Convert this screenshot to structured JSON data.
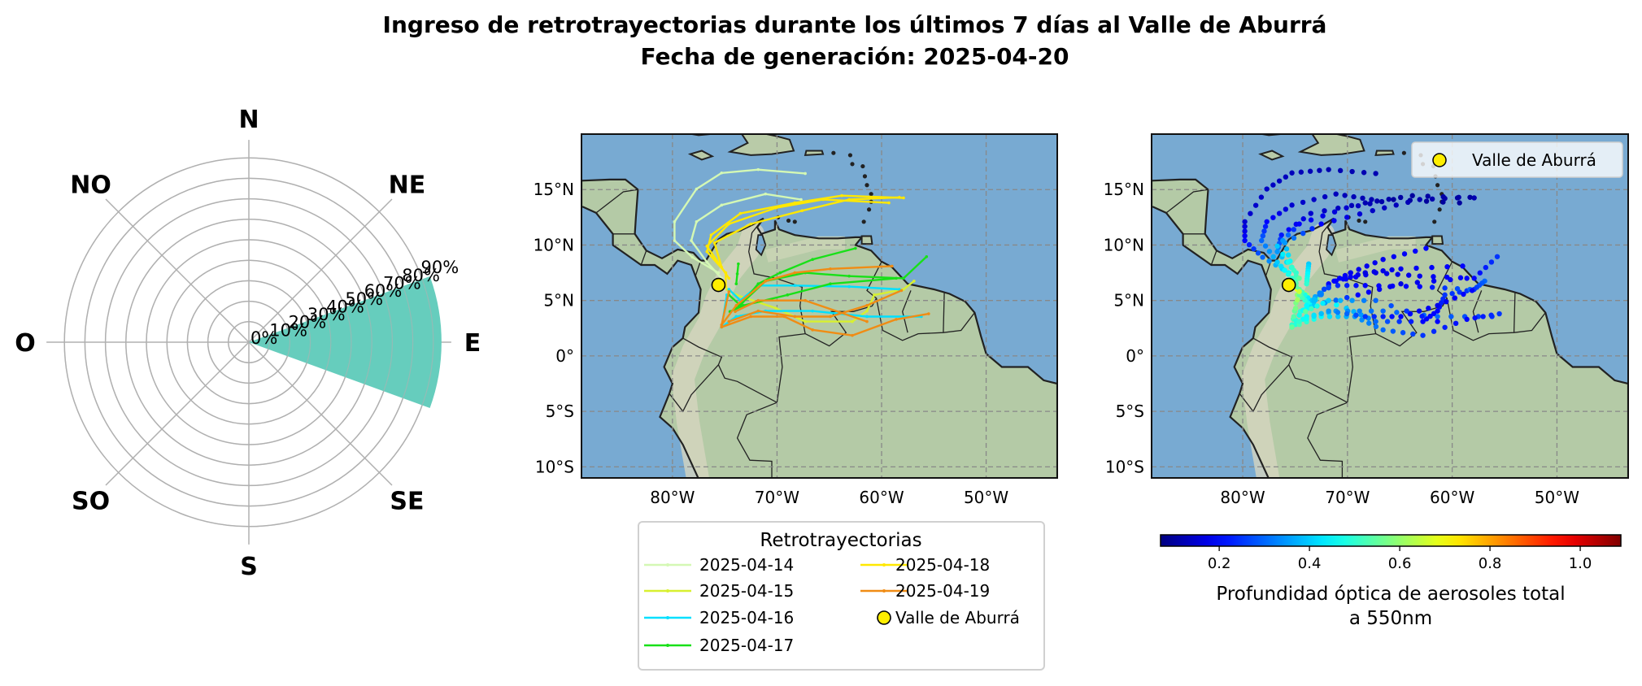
{
  "title": {
    "line1": "Ingreso de retrotrayectorias durante los últimos 7 días al Valle de Aburrá",
    "line2": "Fecha de generación: 2025-04-20"
  },
  "chart_data": [
    {
      "type": "polar-bar",
      "directions": [
        "N",
        "NE",
        "E",
        "SE",
        "S",
        "SO",
        "O",
        "NO"
      ],
      "values": [
        0,
        0,
        94,
        0,
        0,
        0,
        0,
        0
      ],
      "bar_color": "#66cdbd",
      "radial_ticks": [
        "0%",
        "10%",
        "20%",
        "30%",
        "40%",
        "50%",
        "60%",
        "70%",
        "80%",
        "90%"
      ],
      "radial_tick_values": [
        0,
        10,
        20,
        30,
        40,
        50,
        60,
        70,
        80,
        90
      ],
      "rlim": [
        0,
        94
      ],
      "grid": true
    },
    {
      "type": "line",
      "xlim": [
        -88.7,
        -43.2
      ],
      "ylim": [
        -11,
        20
      ],
      "x_ticks": [
        {
          "v": -80,
          "label": "80°W"
        },
        {
          "v": -70,
          "label": "70°W"
        },
        {
          "v": -60,
          "label": "60°W"
        },
        {
          "v": -50,
          "label": "50°W"
        }
      ],
      "y_ticks": [
        {
          "v": 15,
          "label": "15°N"
        },
        {
          "v": 10,
          "label": "10°N"
        },
        {
          "v": 5,
          "label": "5°N"
        },
        {
          "v": 0,
          "label": "0°"
        },
        {
          "v": -5,
          "label": "5°S"
        },
        {
          "v": -10,
          "label": "10°S"
        }
      ],
      "grid": true,
      "legend": {
        "title": "Retrotrayectorias",
        "placement": "bottom",
        "entries": [
          "2025-04-14",
          "2025-04-15",
          "2025-04-16",
          "2025-04-17",
          "2025-04-18",
          "2025-04-19",
          "Valle de Aburrá"
        ]
      },
      "site": {
        "name": "Valle de Aburrá",
        "lon": -75.6,
        "lat": 6.4,
        "color": "#ffee00"
      },
      "series": [
        {
          "name": "2025-04-14",
          "color": "#d4f8b4",
          "paths": [
            {
              "lon": [
                -67.3,
                -71.8,
                -75.3,
                -77.7,
                -79.8,
                -79.8,
                -78.1,
                -75.6
              ],
              "lat": [
                16.45,
                16.8,
                16.5,
                15.05,
                12.1,
                10.4,
                8.9,
                7.5
              ],
              "aod": [
                0.12,
                0.12,
                0.13,
                0.14,
                0.15,
                0.2,
                0.3,
                0.45
              ]
            },
            {
              "lon": [
                -67.7,
                -71.1,
                -75.3,
                -77.7,
                -78.2,
                -76.7,
                -75.3
              ],
              "lat": [
                14.1,
                14.6,
                13.6,
                12.1,
                10.4,
                8.45,
                7.0
              ],
              "aod": [
                0.12,
                0.13,
                0.15,
                0.2,
                0.3,
                0.4,
                0.5
              ]
            }
          ]
        },
        {
          "name": "2025-04-15",
          "color": "#d8f030",
          "paths": [
            {
              "lon": [
                -56.9,
                -57.9,
                -60.7,
                -61.4,
                -62.8,
                -67.3,
                -70.1,
                -73.9,
                -74.8
              ],
              "lat": [
                6.75,
                6.0,
                5.5,
                4.05,
                3.1,
                3.1,
                4.3,
                5.5,
                6.0
              ],
              "aod": [
                0.3,
                0.25,
                0.25,
                0.2,
                0.2,
                0.3,
                0.4,
                0.6,
                0.7
              ]
            }
          ]
        },
        {
          "name": "2025-04-16",
          "color": "#00e0ff",
          "paths": [
            {
              "lon": [
                -56.2,
                -61.4,
                -66.6,
                -71.1,
                -73.9,
                -75.3,
                -74.8
              ],
              "lat": [
                3.55,
                3.55,
                4.05,
                4.05,
                3.55,
                2.6,
                5.5
              ],
              "aod": [
                0.25,
                0.3,
                0.3,
                0.35,
                0.45,
                0.5,
                0.6
              ]
            },
            {
              "lon": [
                -58.3,
                -63.1,
                -68.3,
                -71.8,
                -73.5,
                -74.6
              ],
              "lat": [
                6.0,
                6.25,
                6.35,
                6.35,
                5.0,
                6.0
              ],
              "aod": [
                0.3,
                0.2,
                0.2,
                0.25,
                0.4,
                0.55
              ]
            }
          ]
        },
        {
          "name": "2025-04-17",
          "color": "#18e018",
          "paths": [
            {
              "lon": [
                -62.5,
                -66.6,
                -69.7,
                -71.8,
                -73.5,
                -74.6
              ],
              "lat": [
                9.7,
                8.7,
                7.5,
                6.5,
                4.55,
                5.5
              ],
              "aod": [
                0.2,
                0.18,
                0.18,
                0.2,
                0.45,
                0.55
              ]
            },
            {
              "lon": [
                -55.7,
                -57.9,
                -63.1,
                -67.3,
                -71.1,
                -73.9
              ],
              "lat": [
                8.95,
                7.0,
                7.2,
                7.5,
                6.75,
                4.3
              ],
              "aod": [
                0.25,
                0.2,
                0.18,
                0.17,
                0.2,
                0.45
              ]
            },
            {
              "lon": [
                -58.6,
                -64.9,
                -69.0,
                -73.2,
                -74.5
              ],
              "lat": [
                7.0,
                6.5,
                5.5,
                4.55,
                4.0
              ],
              "aod": [
                0.2,
                0.17,
                0.2,
                0.4,
                0.5
              ]
            },
            {
              "lon": [
                -73.7,
                -73.8,
                -73.9
              ],
              "lat": [
                8.3,
                7.4,
                6.5
              ],
              "aod": [
                0.4,
                0.45,
                0.5
              ]
            }
          ]
        },
        {
          "name": "2025-04-18",
          "color": "#ffe800",
          "paths": [
            {
              "lon": [
                -57.9,
                -63.8,
                -68.3,
                -73.5,
                -76.3,
                -76.7,
                -74.9,
                -74.9
              ],
              "lat": [
                14.25,
                14.45,
                13.8,
                12.85,
                10.9,
                9.4,
                7.5,
                6.25
              ],
              "aod": [
                0.12,
                0.1,
                0.12,
                0.15,
                0.22,
                0.35,
                0.5,
                0.55
              ]
            },
            {
              "lon": [
                -59.3,
                -65.6,
                -70.1,
                -74.6,
                -76.7,
                -74.6
              ],
              "lat": [
                13.8,
                14.1,
                13.35,
                11.9,
                9.9,
                7.0
              ],
              "aod": [
                0.1,
                0.1,
                0.15,
                0.2,
                0.4,
                0.55
              ]
            },
            {
              "lon": [
                -58.3,
                -63.1,
                -67.6,
                -72.5,
                -75.98,
                -75.3
              ],
              "lat": [
                14.3,
                14.1,
                13.1,
                11.9,
                10.2,
                8.0
              ],
              "aod": [
                0.1,
                0.12,
                0.14,
                0.2,
                0.35,
                0.5
              ]
            }
          ]
        },
        {
          "name": "2025-04-19",
          "color": "#f08c14",
          "paths": [
            {
              "lon": [
                -59.0,
                -64.9,
                -68.3,
                -71.1,
                -73.9,
                -75.3,
                -74.6
              ],
              "lat": [
                8.1,
                7.85,
                7.5,
                6.75,
                4.55,
                2.8,
                5.8
              ],
              "aod": [
                0.2,
                0.18,
                0.17,
                0.2,
                0.45,
                0.5,
                0.65
              ]
            },
            {
              "lon": [
                -55.5,
                -58.6,
                -62.8,
                -66.6,
                -69.3,
                -72.5,
                -75.3
              ],
              "lat": [
                3.8,
                3.3,
                1.85,
                2.35,
                3.55,
                3.55,
                2.6
              ],
              "aod": [
                0.25,
                0.2,
                0.25,
                0.3,
                0.35,
                0.45,
                0.55
              ]
            },
            {
              "lon": [
                -58.1,
                -61.4,
                -64.9,
                -68.3,
                -71.8,
                -74.6
              ],
              "lat": [
                5.9,
                4.55,
                3.55,
                3.55,
                4.05,
                3.1
              ],
              "aod": [
                0.2,
                0.18,
                0.2,
                0.25,
                0.35,
                0.5
              ]
            },
            {
              "lon": [
                -61.4,
                -67.3,
                -71.8,
                -74.0
              ],
              "lat": [
                3.1,
                5.0,
                5.0,
                4.0
              ],
              "aod": [
                0.2,
                0.3,
                0.4,
                0.55
              ]
            }
          ]
        }
      ]
    },
    {
      "type": "scatter",
      "xlim": [
        -88.7,
        -43.2
      ],
      "ylim": [
        -11,
        20
      ],
      "colormap": "jet",
      "legend": {
        "placement": "top-right",
        "entries": [
          "Valle de Aburrá"
        ]
      },
      "colorbar": {
        "vmin": 0.07,
        "vmax": 1.09,
        "ticks": [
          {
            "v": 0.2,
            "label": "0.2"
          },
          {
            "v": 0.4,
            "label": "0.4"
          },
          {
            "v": 0.6,
            "label": "0.6"
          },
          {
            "v": 0.8,
            "label": "0.8"
          },
          {
            "v": 1.0,
            "label": "1.0"
          }
        ],
        "label_line1": "Profundidad óptica de aerosoles total",
        "label_line2": "a 550nm"
      },
      "values_source": "aod of the trajectory series above"
    }
  ]
}
